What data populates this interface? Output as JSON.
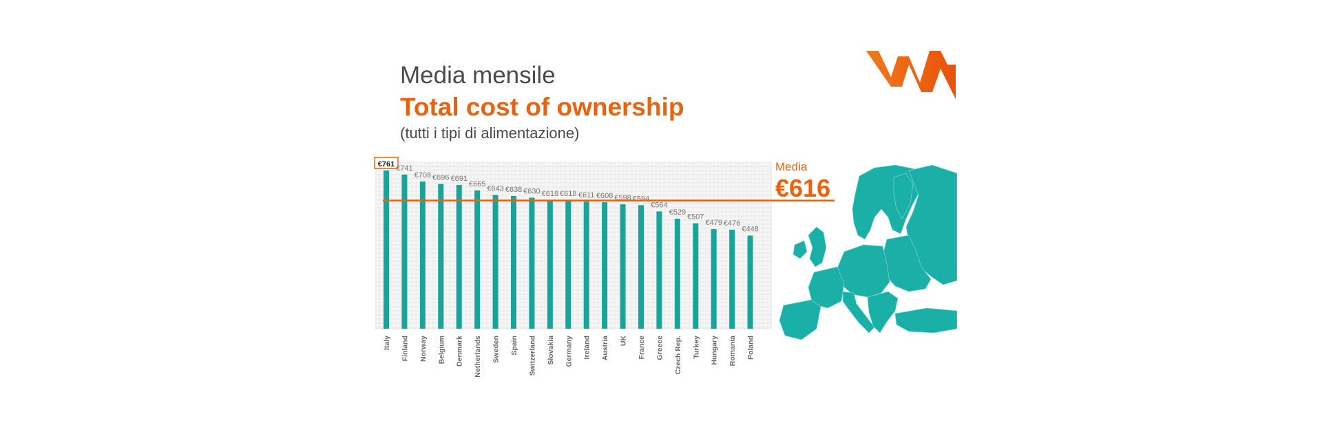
{
  "header": {
    "title": "Media mensile",
    "subtitle": "Total cost of ownership",
    "caption": "(tutti i tipi di alimentazione)"
  },
  "average": {
    "label": "Media",
    "value_text": "€616",
    "value": 616
  },
  "colors": {
    "bar": "#17a49b",
    "accent": "#e8630c",
    "map": "#1ab0a8"
  },
  "icons": [
    "logo-icon",
    "europe-map-icon"
  ],
  "chart_data": {
    "type": "bar",
    "categories": [
      "Italy",
      "Finland",
      "Norway",
      "Belgium",
      "Denmark",
      "Netherlands",
      "Sweden",
      "Spain",
      "Switzerland",
      "Slovakia",
      "Germany",
      "Ireland",
      "Austria",
      "UK",
      "France",
      "Greece",
      "Czech Rep.",
      "Turkey",
      "Hungary",
      "Romania",
      "Poland"
    ],
    "values": [
      761,
      741,
      708,
      696,
      691,
      665,
      643,
      638,
      630,
      618,
      618,
      611,
      608,
      598,
      594,
      564,
      529,
      507,
      479,
      476,
      448
    ],
    "data_labels": [
      "€761",
      "€741",
      "€708",
      "€696",
      "€691",
      "€665",
      "€643",
      "€638",
      "€630",
      "€618",
      "€618",
      "€611",
      "€608",
      "€598",
      "€594",
      "€564",
      "€529",
      "€507",
      "€479",
      "€476",
      "€448"
    ],
    "highlighted_index": 0,
    "reference_line": 616,
    "ylim": [
      0,
      800
    ],
    "grid": true,
    "title": "Total cost of ownership",
    "xlabel": "",
    "ylabel": ""
  }
}
